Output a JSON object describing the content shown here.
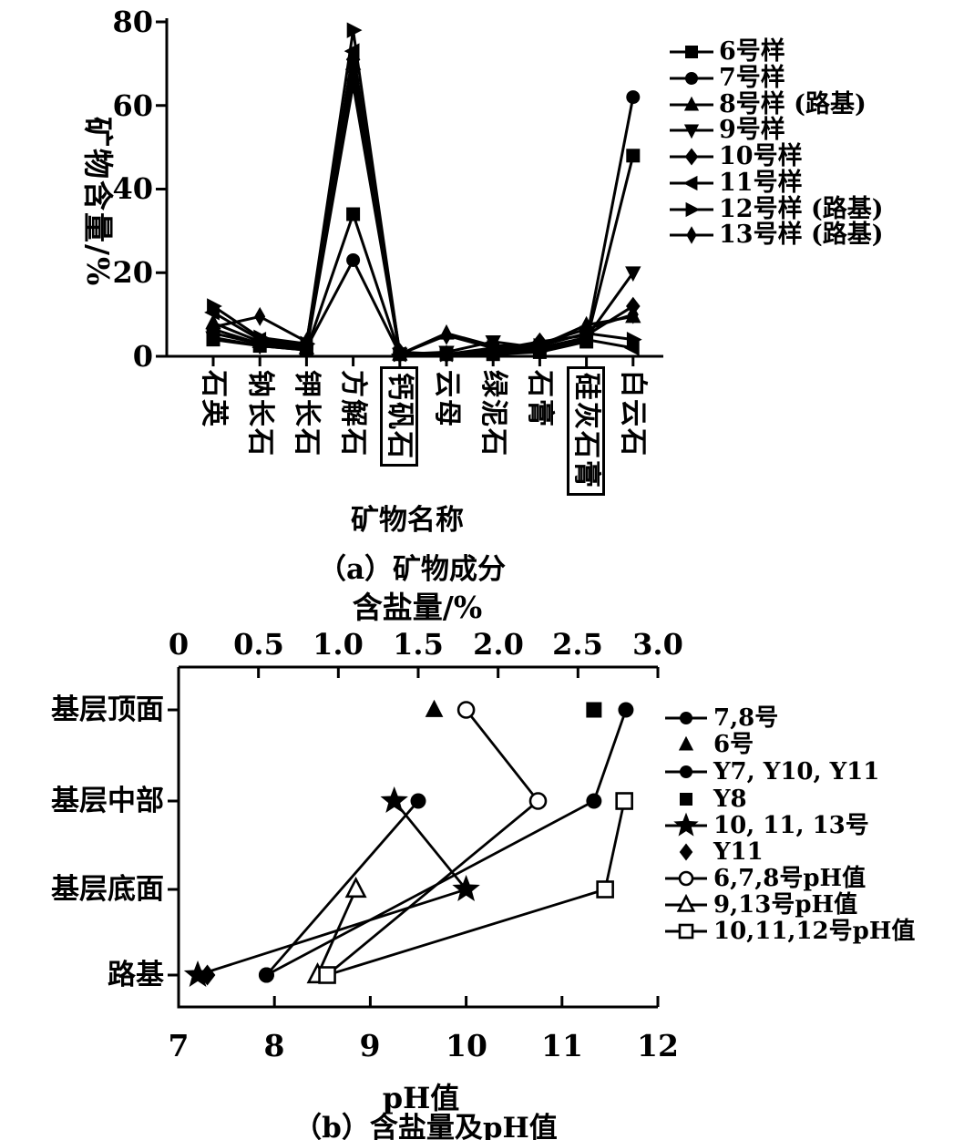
{
  "figure": {
    "color": "#000000",
    "background": "#ffffff"
  },
  "chart_data": [
    {
      "type": "line",
      "title": "（a）矿物成分",
      "xlabel": "矿物名称",
      "ylabel": "矿物含量/%",
      "ylim": [
        0,
        80
      ],
      "yticks": [
        "0",
        "20",
        "40",
        "60",
        "80"
      ],
      "grid": false,
      "legend_position": "right",
      "categories": [
        "石英",
        "钠长石",
        "钾长石",
        "方解石",
        "钙矾石",
        "云母",
        "绿泥石",
        "石膏",
        "硅灰石膏",
        "白云石"
      ],
      "boxed_categories": [
        "钙矾石",
        "硅灰石膏"
      ],
      "series": [
        {
          "name": "6号样",
          "marker": "square",
          "values": [
            4,
            2.5,
            1.5,
            34,
            0.5,
            0.5,
            0.5,
            1,
            3.5,
            48
          ]
        },
        {
          "name": "7号样",
          "marker": "circle",
          "values": [
            6.5,
            3,
            2,
            23,
            0.5,
            0.5,
            1,
            1.5,
            4,
            62
          ]
        },
        {
          "name": "8号样 (路基)",
          "marker": "triangle-up",
          "values": [
            8,
            3.5,
            2,
            70,
            0.5,
            5.5,
            2.5,
            2.5,
            7.5,
            9.5
          ]
        },
        {
          "name": "9号样",
          "marker": "triangle-down",
          "values": [
            4.5,
            2.5,
            1.5,
            65,
            0.5,
            1,
            3.5,
            2,
            4.5,
            20
          ]
        },
        {
          "name": "10号样",
          "marker": "diamond",
          "values": [
            5.5,
            3,
            2.5,
            71,
            1,
            0.5,
            1.5,
            3.5,
            5,
            12
          ]
        },
        {
          "name": "11号样",
          "marker": "triangle-left",
          "values": [
            10.5,
            4,
            2.5,
            73,
            0.5,
            0.5,
            1.5,
            2,
            4,
            2
          ]
        },
        {
          "name": "12号样 (路基)",
          "marker": "triangle-right",
          "values": [
            12,
            4.5,
            3,
            78,
            0.5,
            0.5,
            2,
            2.5,
            5.5,
            4
          ]
        },
        {
          "name": "13号样 (路基)",
          "marker": "diamond-narrow",
          "values": [
            7,
            9.5,
            3.5,
            68,
            0.5,
            5,
            2,
            3,
            6.5,
            10
          ]
        }
      ]
    },
    {
      "type": "scatter",
      "title": "（b）含盐量及pH值",
      "categories": [
        "基层顶面",
        "基层中部",
        "基层底面",
        "路基"
      ],
      "x_top": {
        "label": "含盐量/%",
        "range": [
          0,
          3
        ],
        "ticks": [
          "0",
          "0.5",
          "1.0",
          "1.5",
          "2.0",
          "2.5",
          "3.0"
        ]
      },
      "x_bottom": {
        "label": "pH值",
        "range": [
          7,
          12
        ],
        "ticks": [
          "7",
          "8",
          "9",
          "10",
          "11",
          "12"
        ]
      },
      "grid": false,
      "legend_position": "right",
      "series": [
        {
          "name": "7,8号",
          "marker": "circle",
          "line": true,
          "axis": "top",
          "points": [
            [
              2.8,
              "基层顶面"
            ],
            [
              2.6,
              "基层中部"
            ],
            [
              0.55,
              "路基"
            ]
          ]
        },
        {
          "name": "6号",
          "marker": "triangle-up",
          "line": false,
          "axis": "top",
          "points": [
            [
              1.6,
              "基层顶面"
            ]
          ]
        },
        {
          "name": "Y7, Y10, Y11",
          "marker": "circle",
          "line": true,
          "axis": "top",
          "points": [
            [
              1.5,
              "基层中部"
            ],
            [
              0.55,
              "路基"
            ]
          ]
        },
        {
          "name": "Y8",
          "marker": "square",
          "line": false,
          "axis": "top",
          "points": [
            [
              2.6,
              "基层顶面"
            ]
          ]
        },
        {
          "name": "10, 11, 13号",
          "marker": "star",
          "line": true,
          "axis": "top",
          "points": [
            [
              1.35,
              "基层中部"
            ],
            [
              1.8,
              "基层底面"
            ],
            [
              0.12,
              "路基"
            ]
          ]
        },
        {
          "name": "Y11",
          "marker": "diamond",
          "line": false,
          "axis": "top",
          "points": [
            [
              0.18,
              "路基"
            ]
          ]
        },
        {
          "name": "6,7,8号pH值",
          "marker": "circle-open",
          "line": true,
          "axis": "bottom",
          "points": [
            [
              10.0,
              "基层顶面"
            ],
            [
              10.75,
              "基层中部"
            ],
            [
              8.55,
              "路基",
              false
            ]
          ]
        },
        {
          "name": "9,13号pH值",
          "marker": "triangle-open",
          "line": true,
          "axis": "bottom",
          "points": [
            [
              8.85,
              "基层底面"
            ],
            [
              8.45,
              "路基"
            ]
          ]
        },
        {
          "name": "10,11,12号pH值",
          "marker": "square-open",
          "line": true,
          "axis": "bottom",
          "points": [
            [
              11.65,
              "基层中部"
            ],
            [
              11.45,
              "基层底面"
            ],
            [
              8.55,
              "路基"
            ]
          ]
        }
      ]
    }
  ]
}
